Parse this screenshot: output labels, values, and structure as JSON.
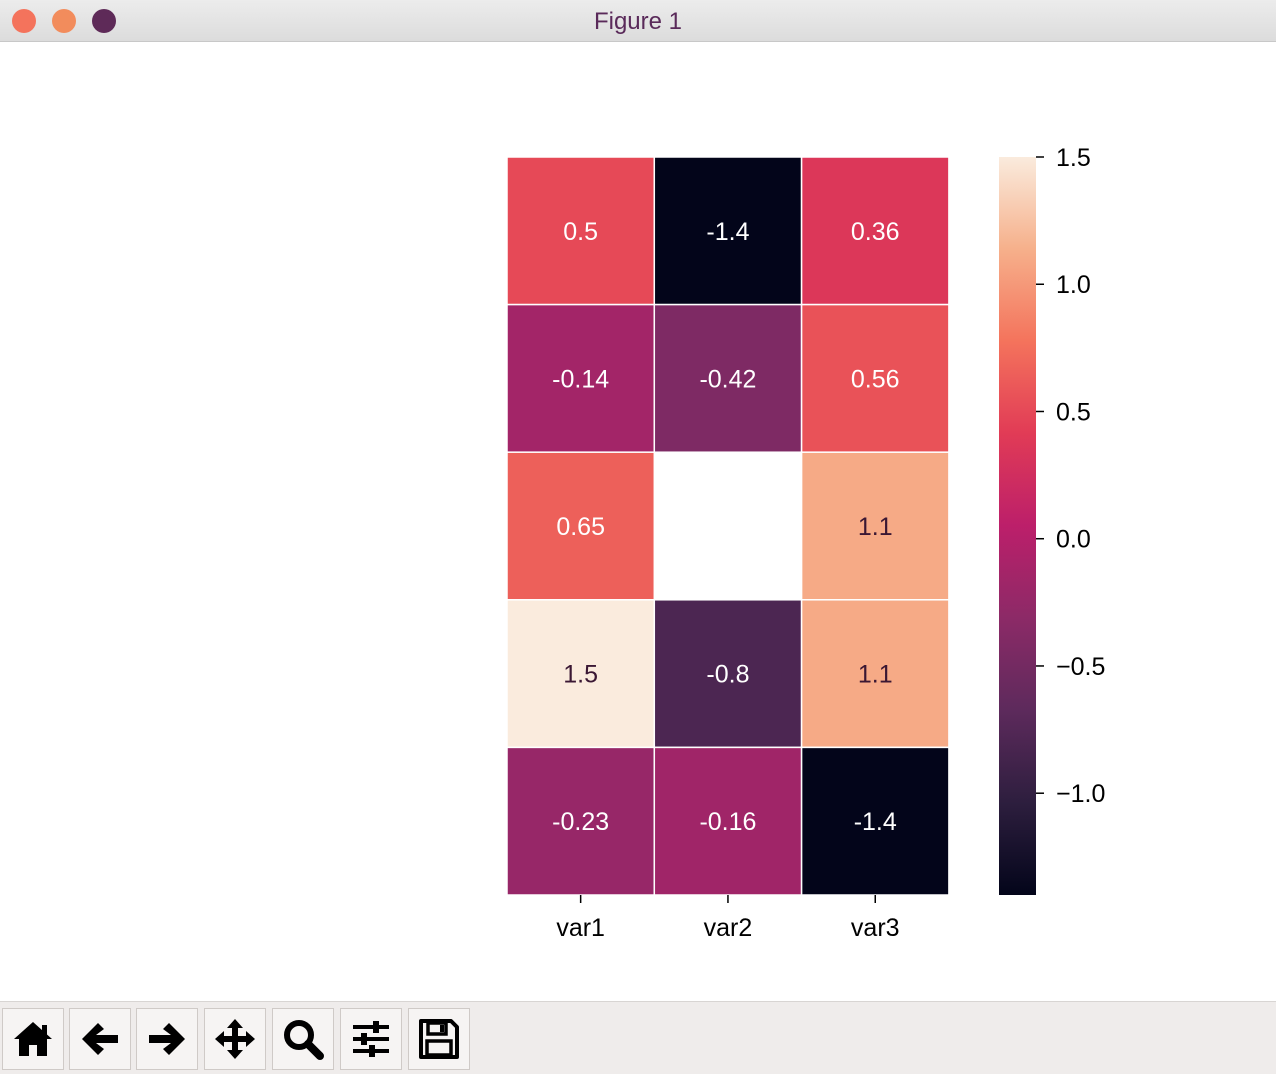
{
  "window": {
    "title": "Figure 1",
    "controls": [
      {
        "name": "close",
        "color": "#f4735c"
      },
      {
        "name": "minimize",
        "color": "#f28c5c"
      },
      {
        "name": "zoom",
        "color": "#5e2a58"
      }
    ]
  },
  "chart_data": {
    "type": "heatmap",
    "x_categories": [
      "var1",
      "var2",
      "var3"
    ],
    "values": [
      [
        0.5,
        -1.4,
        0.36
      ],
      [
        -0.14,
        -0.42,
        0.56
      ],
      [
        0.65,
        null,
        1.1
      ],
      [
        1.5,
        -0.8,
        1.1
      ],
      [
        -0.23,
        -0.16,
        -1.4
      ]
    ],
    "colorbar": {
      "range": [
        -1.4,
        1.5
      ],
      "ticks": [
        1.5,
        1.0,
        0.5,
        0.0,
        -0.5,
        -1.0
      ],
      "tick_labels": [
        "1.5",
        "1.0",
        "0.5",
        "0.0",
        "−0.5",
        "−1.0"
      ]
    },
    "colormap": "rocket",
    "annotated": true
  },
  "toolbar": {
    "buttons": [
      {
        "name": "home",
        "icon": "home-icon"
      },
      {
        "name": "back",
        "icon": "arrow-left-icon"
      },
      {
        "name": "forward",
        "icon": "arrow-right-icon"
      },
      {
        "name": "pan",
        "icon": "move-icon"
      },
      {
        "name": "zoom",
        "icon": "magnifier-icon"
      },
      {
        "name": "configure-subplots",
        "icon": "sliders-icon"
      },
      {
        "name": "save",
        "icon": "floppy-disk-icon"
      }
    ]
  }
}
